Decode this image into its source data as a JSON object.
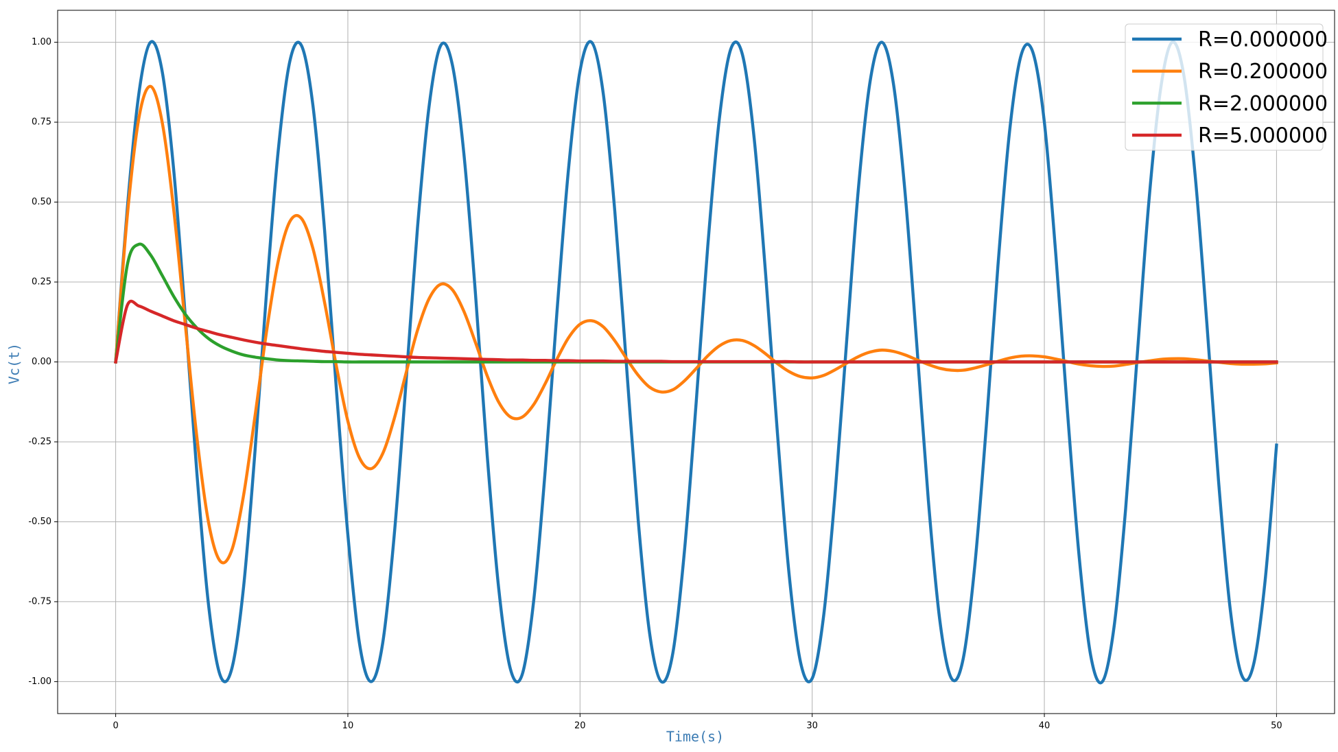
{
  "chart_data": {
    "type": "line",
    "xlabel": "Time(s)",
    "ylabel": "Vc(t)",
    "xlim": [
      -2.5,
      52.5
    ],
    "ylim": [
      -1.1,
      1.1
    ],
    "xticks": [
      0,
      10,
      20,
      30,
      40,
      50
    ],
    "yticks": [
      {
        "value": -1,
        "label": "-1.00"
      },
      -0.75,
      {
        "value": -0.5,
        "label": "-0.50"
      },
      -0.25,
      {
        "value": 0,
        "label": "0.00"
      },
      0.25,
      {
        "value": 0.5,
        "label": "0.50"
      },
      0.75,
      {
        "value": 1,
        "label": "1.00"
      }
    ],
    "grid": true,
    "legend": "upper right",
    "x": [
      0,
      0.5,
      1,
      1.5,
      2,
      2.5,
      3,
      3.5,
      4,
      4.5,
      5,
      5.5,
      6,
      6.5,
      7,
      7.5,
      8,
      8.5,
      9,
      9.5,
      10,
      10.5,
      11,
      11.5,
      12,
      12.5,
      13,
      13.5,
      14,
      14.5,
      15,
      15.5,
      16,
      16.5,
      17,
      17.5,
      18,
      18.5,
      19,
      19.5,
      20,
      20.5,
      21,
      21.5,
      22,
      22.5,
      23,
      23.5,
      24,
      24.5,
      25,
      25.5,
      26,
      26.5,
      27,
      27.5,
      28,
      28.5,
      29,
      29.5,
      30,
      30.5,
      31,
      31.5,
      32,
      32.5,
      33,
      33.5,
      34,
      34.5,
      35,
      35.5,
      36,
      36.5,
      37,
      37.5,
      38,
      38.5,
      39,
      39.5,
      40,
      40.5,
      41,
      41.5,
      42,
      42.5,
      43,
      43.5,
      44,
      44.5,
      45,
      45.5,
      46,
      46.5,
      47,
      47.5,
      48,
      48.5,
      49,
      49.5,
      50
    ],
    "series": [
      {
        "name": "R=0.000000",
        "color": "#1f77b4",
        "values": [
          0,
          0.48,
          0.84,
          1.0,
          0.91,
          0.6,
          0.14,
          -0.35,
          -0.76,
          -0.98,
          -0.96,
          -0.71,
          -0.28,
          0.22,
          0.66,
          0.94,
          0.99,
          0.8,
          0.41,
          -0.08,
          -0.54,
          -0.88,
          -1.0,
          -0.88,
          -0.54,
          -0.07,
          0.42,
          0.8,
          0.99,
          0.93,
          0.65,
          0.21,
          -0.29,
          -0.71,
          -0.96,
          -0.98,
          -0.75,
          -0.34,
          0.15,
          0.6,
          0.91,
          1.0,
          0.84,
          0.47,
          -0.01,
          -0.49,
          -0.85,
          -1.0,
          -0.91,
          -0.59,
          -0.13,
          0.36,
          0.76,
          0.98,
          0.96,
          0.7,
          0.27,
          -0.22,
          -0.66,
          -0.94,
          -0.99,
          -0.79,
          -0.4,
          0.08,
          0.55,
          0.88,
          1.0,
          0.87,
          0.53,
          0.06,
          -0.43,
          -0.81,
          -0.99,
          -0.93,
          -0.64,
          -0.2,
          0.3,
          0.72,
          0.96,
          0.97,
          0.75,
          0.33,
          -0.16,
          -0.61,
          -0.92,
          -1.0,
          -0.83,
          -0.46,
          0.02,
          0.5,
          0.85,
          1.0,
          0.9,
          0.58,
          0.12,
          -0.37,
          -0.77,
          -0.98,
          -0.95,
          -0.69,
          -0.26
        ]
      },
      {
        "name": "R=0.200000",
        "color": "#ff7f0e",
        "values": [
          0,
          0.456,
          0.763,
          0.862,
          0.751,
          0.476,
          0.116,
          -0.237,
          -0.502,
          -0.623,
          -0.589,
          -0.421,
          -0.17,
          0.096,
          0.315,
          0.439,
          0.449,
          0.354,
          0.185,
          -0.011,
          -0.185,
          -0.3,
          -0.334,
          -0.287,
          -0.177,
          -0.037,
          0.099,
          0.198,
          0.243,
          0.226,
          0.158,
          0.06,
          -0.043,
          -0.126,
          -0.172,
          -0.173,
          -0.134,
          -0.068,
          0.008,
          0.075,
          0.118,
          0.129,
          0.11,
          0.066,
          0.011,
          -0.041,
          -0.079,
          -0.094,
          -0.087,
          -0.059,
          -0.021,
          0.019,
          0.05,
          0.067,
          0.067,
          0.051,
          0.025,
          -0.005,
          -0.03,
          -0.046,
          -0.05,
          -0.042,
          -0.024,
          -0.003,
          0.017,
          0.031,
          0.037,
          0.033,
          0.022,
          0.007,
          -0.008,
          -0.02,
          -0.026,
          -0.026,
          -0.019,
          -0.009,
          0.002,
          0.012,
          0.018,
          0.019,
          0.016,
          0.009,
          0.001,
          -0.007,
          -0.012,
          -0.014,
          -0.013,
          -0.008,
          -0.002,
          0.003,
          0.008,
          0.01,
          0.01,
          0.007,
          0.003,
          -0.001,
          -0.005,
          -0.007,
          -0.007,
          -0.006,
          -0.003
        ]
      },
      {
        "name": "R=2.000000",
        "color": "#2ca02c",
        "values": [
          0,
          0.303,
          0.368,
          0.335,
          0.271,
          0.205,
          0.149,
          0.106,
          0.073,
          0.05,
          0.034,
          0.022,
          0.015,
          0.01,
          0.006,
          0.004,
          0.003,
          0.002,
          0.001,
          0.001,
          0,
          0,
          0,
          0,
          0,
          0,
          0,
          0,
          0,
          0,
          0,
          0,
          0,
          0,
          0,
          0,
          0,
          0,
          0,
          0,
          0,
          0,
          0,
          0,
          0,
          0,
          0,
          0,
          0,
          0,
          0,
          0,
          0,
          0,
          0,
          0,
          0,
          0,
          0,
          0,
          0,
          0,
          0,
          0,
          0,
          0,
          0,
          0,
          0,
          0,
          0,
          0,
          0,
          0,
          0,
          0,
          0,
          0,
          0,
          0,
          0,
          0,
          0,
          0,
          0,
          0,
          0,
          0,
          0,
          0,
          0,
          0,
          0,
          0,
          0,
          0,
          0,
          0,
          0,
          0,
          0
        ]
      },
      {
        "name": "R=5.000000",
        "color": "#d62728",
        "values": [
          0,
          0.177,
          0.175,
          0.159,
          0.144,
          0.129,
          0.117,
          0.105,
          0.095,
          0.085,
          0.077,
          0.069,
          0.062,
          0.056,
          0.051,
          0.046,
          0.041,
          0.037,
          0.033,
          0.03,
          0.027,
          0.024,
          0.022,
          0.02,
          0.018,
          0.016,
          0.014,
          0.013,
          0.012,
          0.011,
          0.01,
          0.009,
          0.008,
          0.007,
          0.006,
          0.006,
          0.005,
          0.005,
          0.004,
          0.004,
          0.003,
          0.003,
          0.003,
          0.002,
          0.002,
          0.002,
          0.002,
          0.002,
          0.001,
          0.001,
          0.001,
          0.001,
          0.001,
          0.001,
          0.001,
          0.001,
          0.001,
          0.001,
          0.001,
          0,
          0,
          0,
          0,
          0,
          0,
          0,
          0,
          0,
          0,
          0,
          0,
          0,
          0,
          0,
          0,
          0,
          0,
          0,
          0,
          0,
          0,
          0,
          0,
          0,
          0,
          0,
          0,
          0,
          0,
          0,
          0,
          0,
          0,
          0,
          0,
          0,
          0,
          0,
          0,
          0,
          0
        ]
      }
    ]
  }
}
